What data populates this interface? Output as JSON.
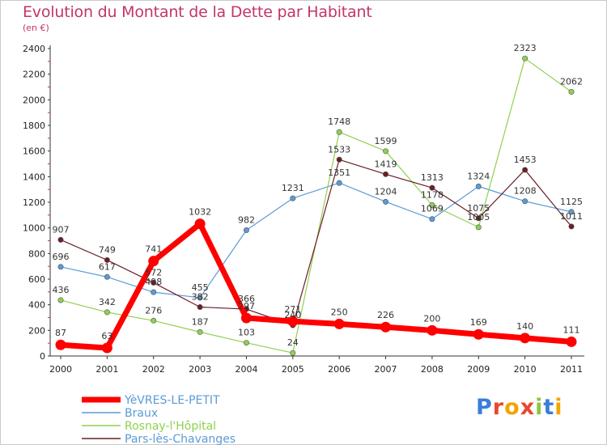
{
  "title": "Evolution du Montant de la Dette par Habitant",
  "unit_label": "(en €)",
  "logo_text": "Proxiti",
  "chart_data": {
    "type": "line",
    "title": "Evolution du Montant de la Dette par Habitant",
    "subtitle": "(en €)",
    "xlabel": "",
    "ylabel": "",
    "x": [
      "2000",
      "2001",
      "2002",
      "2003",
      "2004",
      "2005",
      "2006",
      "2007",
      "2008",
      "2009",
      "2010",
      "2011"
    ],
    "ylim": [
      0,
      2400
    ],
    "yticks": [
      0,
      200,
      400,
      600,
      800,
      1000,
      1200,
      1400,
      1600,
      1800,
      2000,
      2200,
      2400
    ],
    "grid": false,
    "legend": "bottom-left",
    "series": [
      {
        "name": "Braux",
        "color": "#5b9bd5",
        "values": [
          696,
          617,
          498,
          455,
          982,
          1231,
          1351,
          1204,
          1069,
          1324,
          1208,
          1125
        ]
      },
      {
        "name": "Rosnay-l'Hôpital",
        "color": "#8fd14f",
        "values": [
          436,
          342,
          276,
          187,
          103,
          24,
          1748,
          1599,
          1178,
          1005,
          2323,
          2062
        ]
      },
      {
        "name": "Pars-lès-Chavanges",
        "color": "#6b1e27",
        "values": [
          907,
          749,
          572,
          382,
          366,
          240,
          1533,
          1419,
          1313,
          1075,
          1453,
          1011
        ]
      },
      {
        "name": "YèVRES-LE-PETIT",
        "color": "#ff0000",
        "values": [
          87,
          63,
          741,
          1032,
          297,
          271,
          250,
          226,
          200,
          169,
          140,
          111
        ]
      }
    ],
    "legend_order": [
      "YèVRES-LE-PETIT",
      "Braux",
      "Rosnay-l'Hôpital",
      "Pars-lès-Chavanges"
    ]
  }
}
